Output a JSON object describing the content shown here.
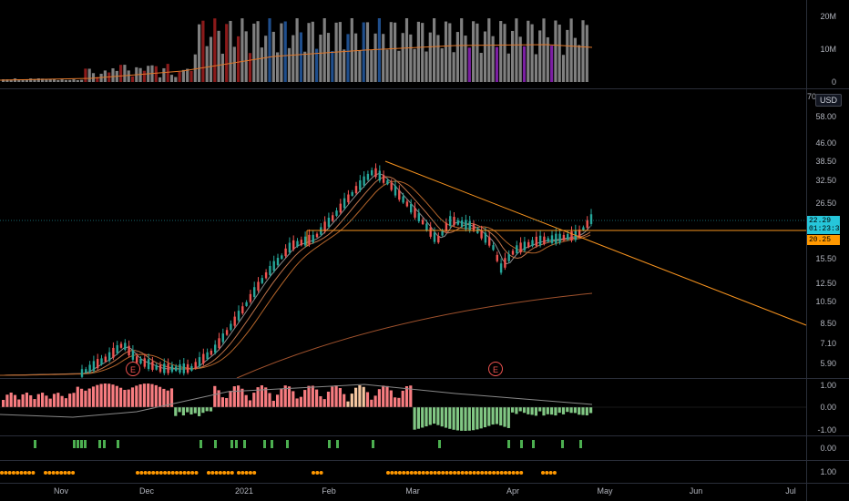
{
  "volume_pane": {
    "labels": [
      "20M",
      "10M",
      "0"
    ]
  },
  "price_pane": {
    "currency_button": "USD",
    "top_partial_label": "70",
    "labels": [
      "58.00",
      "46.00",
      "38.50",
      "32.50",
      "26.50",
      "15.50",
      "12.50",
      "10.50",
      "8.50",
      "7.10",
      "5.90"
    ],
    "last_price_tag": "22.29",
    "countdown_tag": "01:23:36",
    "hline_price_tag": "20.25",
    "earnings_markers": [
      "E",
      "E"
    ]
  },
  "oscillator_pane": {
    "labels": [
      "1.00",
      "0.00",
      "-1.00"
    ]
  },
  "signal_pane_1": {
    "labels": [
      "0.00"
    ]
  },
  "signal_pane_2": {
    "labels": [
      "1.00"
    ]
  },
  "time_axis": {
    "labels": [
      "Nov",
      "Dec",
      "2021",
      "Feb",
      "Mar",
      "Apr",
      "May",
      "Jun",
      "Jul"
    ]
  },
  "colors": {
    "background": "#000000",
    "up_candle": "#26a69a",
    "down_candle": "#ef5350",
    "trendline": "#f7931e",
    "last_price_tag": "#26c6da",
    "hline_tag": "#ff9800",
    "osc_red": "#f77c80",
    "osc_green": "#81c784",
    "signal_green": "#4caf50",
    "signal_orange": "#ff9800"
  }
}
